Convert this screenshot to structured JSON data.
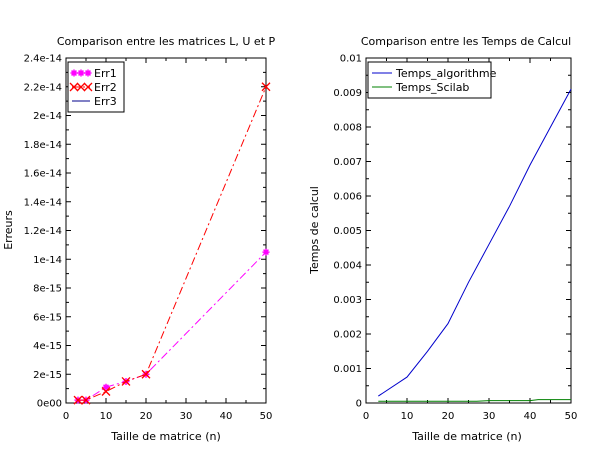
{
  "chart_data": [
    {
      "type": "line",
      "title": "Comparison entre les matrices L, U et P",
      "xlabel": "Taille de matrice (n)",
      "ylabel": "Erreurs",
      "xlim": [
        0,
        50
      ],
      "ylim": [
        0,
        2.4e-14
      ],
      "xticks": [
        "0",
        "10",
        "20",
        "30",
        "40",
        "50"
      ],
      "yticks": [
        "0e00",
        "2e-15",
        "4e-15",
        "6e-15",
        "8e-15",
        "1e-14",
        "1.2e-14",
        "1.4e-14",
        "1.6e-14",
        "1.8e-14",
        "2e-14",
        "2.2e-14",
        "2.4e-14"
      ],
      "legend_position": "top-left",
      "series": [
        {
          "name": "Err1",
          "color": "#ff00ff",
          "line_style": "dash-dot",
          "marker": "asterisk",
          "x": [
            3,
            5,
            10,
            15,
            20,
            50
          ],
          "y": [
            2e-16,
            2e-16,
            1.1e-15,
            1.5e-15,
            2e-15,
            1.05e-14
          ]
        },
        {
          "name": "Err2",
          "color": "#ff0000",
          "line_style": "dash-dot",
          "marker": "x",
          "x": [
            3,
            5,
            10,
            15,
            20,
            50
          ],
          "y": [
            2e-16,
            2e-16,
            8e-16,
            1.5e-15,
            2e-15,
            2.2e-14
          ]
        },
        {
          "name": "Err3",
          "color": "#00008b",
          "line_style": "solid",
          "marker": "none",
          "x": [],
          "y": []
        }
      ]
    },
    {
      "type": "line",
      "title": "Comparison entre les Temps de Calcul",
      "xlabel": "Taille de matrice (n)",
      "ylabel": "Temps de calcul",
      "xlim": [
        0,
        50
      ],
      "ylim": [
        0,
        0.01
      ],
      "xticks": [
        "0",
        "10",
        "20",
        "30",
        "40",
        "50"
      ],
      "yticks": [
        "0",
        "0.001",
        "0.002",
        "0.003",
        "0.004",
        "0.005",
        "0.006",
        "0.007",
        "0.008",
        "0.009",
        "0.01"
      ],
      "legend_position": "top-left",
      "series": [
        {
          "name": "Temps_algorithme",
          "color": "#0000cc",
          "line_style": "solid",
          "marker": "none",
          "x": [
            3,
            10,
            15,
            20,
            25,
            30,
            35,
            40,
            45,
            50
          ],
          "y": [
            0.0002,
            0.00075,
            0.0015,
            0.0023,
            0.0035,
            0.0046,
            0.0057,
            0.0069,
            0.008,
            0.0091
          ]
        },
        {
          "name": "Temps_Scilab",
          "color": "#008000",
          "line_style": "solid",
          "marker": "none",
          "x": [
            3,
            10,
            20,
            27,
            30,
            40,
            42,
            50
          ],
          "y": [
            5e-05,
            5e-05,
            5e-05,
            5e-05,
            7e-05,
            7e-05,
            0.0001,
            0.0001
          ]
        }
      ]
    }
  ]
}
